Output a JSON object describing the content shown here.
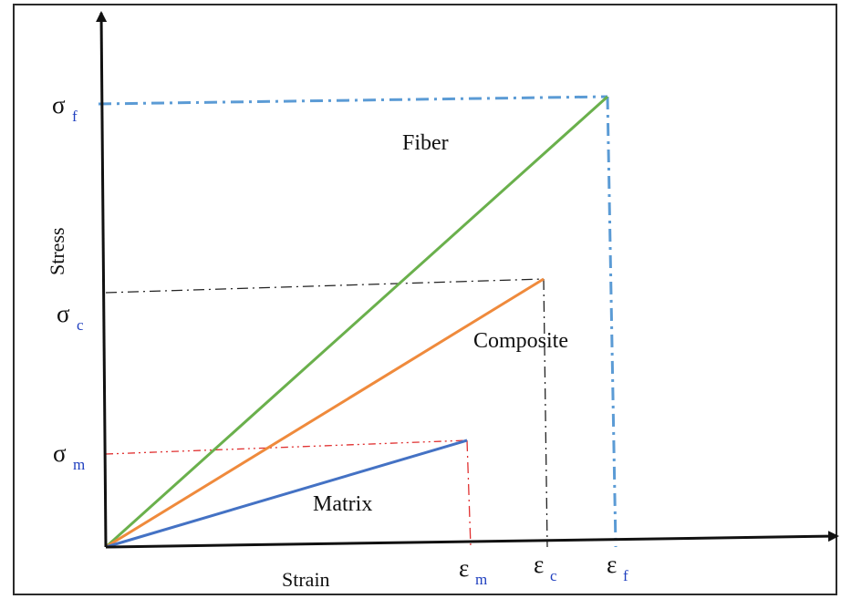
{
  "axes": {
    "x_label": "Strain",
    "y_label": "Stress",
    "color": "#111111"
  },
  "lines": {
    "fiber": {
      "label": "Fiber",
      "color": "#6ab04c"
    },
    "composite": {
      "label": "Composite",
      "color": "#ef8a3c"
    },
    "matrix": {
      "label": "Matrix",
      "color": "#4472c4"
    }
  },
  "guides": {
    "fiber": {
      "color": "#5b9bd5"
    },
    "composite": {
      "color": "#222222"
    },
    "matrix": {
      "color": "#e03030"
    }
  },
  "symbols": {
    "sigma_f": {
      "base": "σ",
      "sub": "f"
    },
    "sigma_c": {
      "base": "σ",
      "sub": "c"
    },
    "sigma_m": {
      "base": "σ",
      "sub": "m"
    },
    "eps_m": {
      "base": "ε",
      "sub": "m"
    },
    "eps_c": {
      "base": "ε",
      "sub": "c"
    },
    "eps_f": {
      "base": "ε",
      "sub": "f"
    }
  }
}
